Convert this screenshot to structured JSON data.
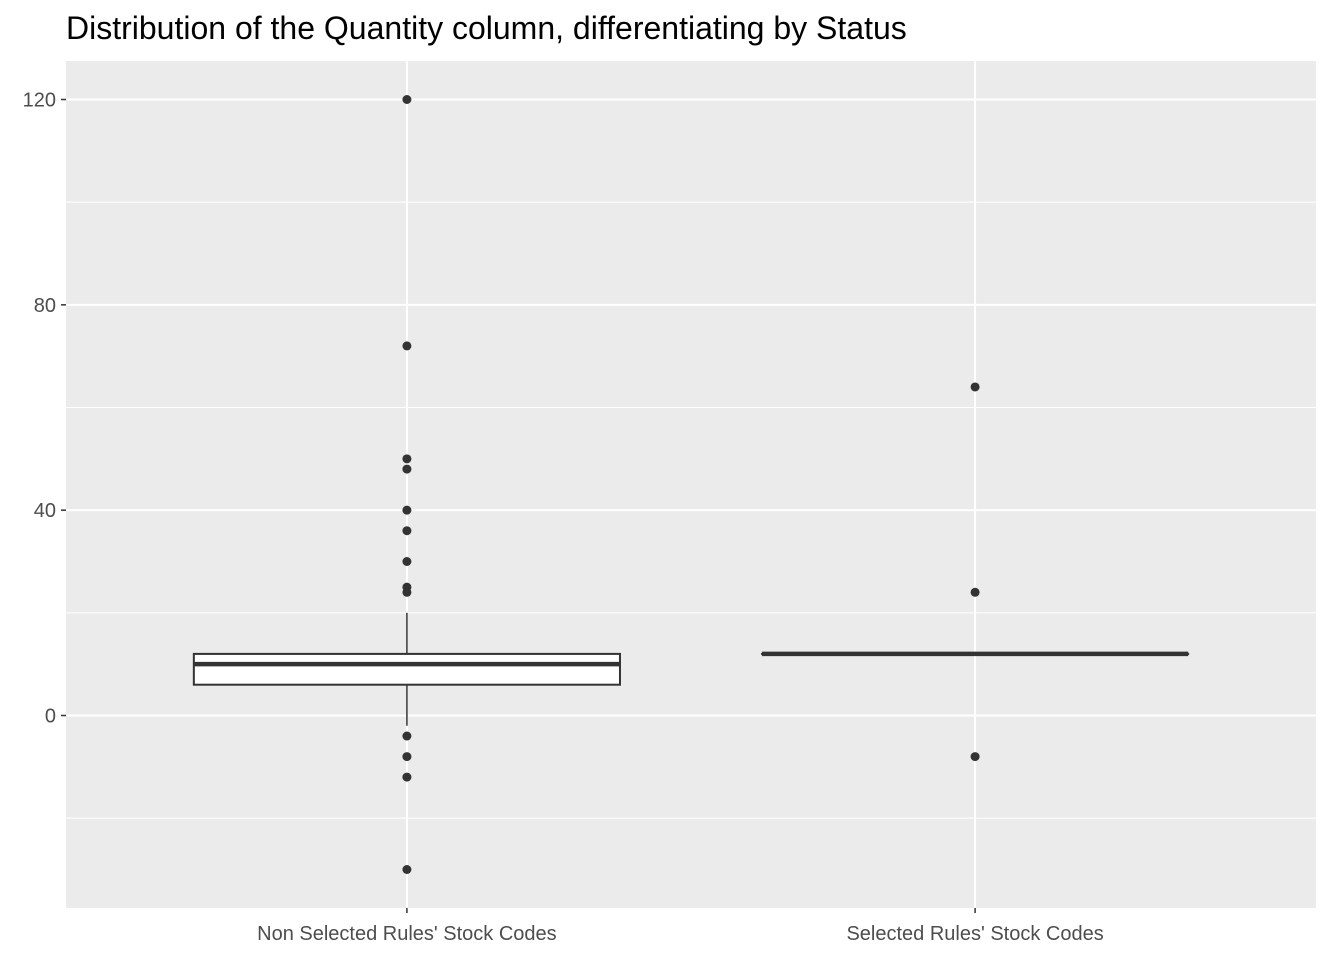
{
  "chart_data": {
    "type": "boxplot",
    "title": "Distribution of the Quantity column, differentiating by Status",
    "xlabel": "",
    "ylabel": "",
    "categories": [
      "Non Selected Rules' Stock Codes",
      "Selected Rules' Stock Codes"
    ],
    "ylim": [
      -37.5,
      127.5
    ],
    "yticks": [
      0,
      40,
      80,
      120
    ],
    "grid": true,
    "background": "#ebebeb",
    "boxes": [
      {
        "category": "Non Selected Rules' Stock Codes",
        "min": -2,
        "q1": 6,
        "median": 10,
        "q3": 12,
        "max": 20,
        "outliers": [
          120,
          72,
          50,
          48,
          40,
          36,
          30,
          25,
          24,
          -4,
          -8,
          -12,
          -30
        ]
      },
      {
        "category": "Selected Rules' Stock Codes",
        "min": 12,
        "q1": 12,
        "median": 12,
        "q3": 12,
        "max": 12,
        "outliers": [
          64,
          24,
          -8
        ]
      }
    ],
    "colors": {
      "panel": "#ebebeb",
      "grid": "#ffffff",
      "box_line": "#333333",
      "box_fill": "#ffffff",
      "point": "#333333",
      "tick_text": "#4d4d4d"
    }
  }
}
